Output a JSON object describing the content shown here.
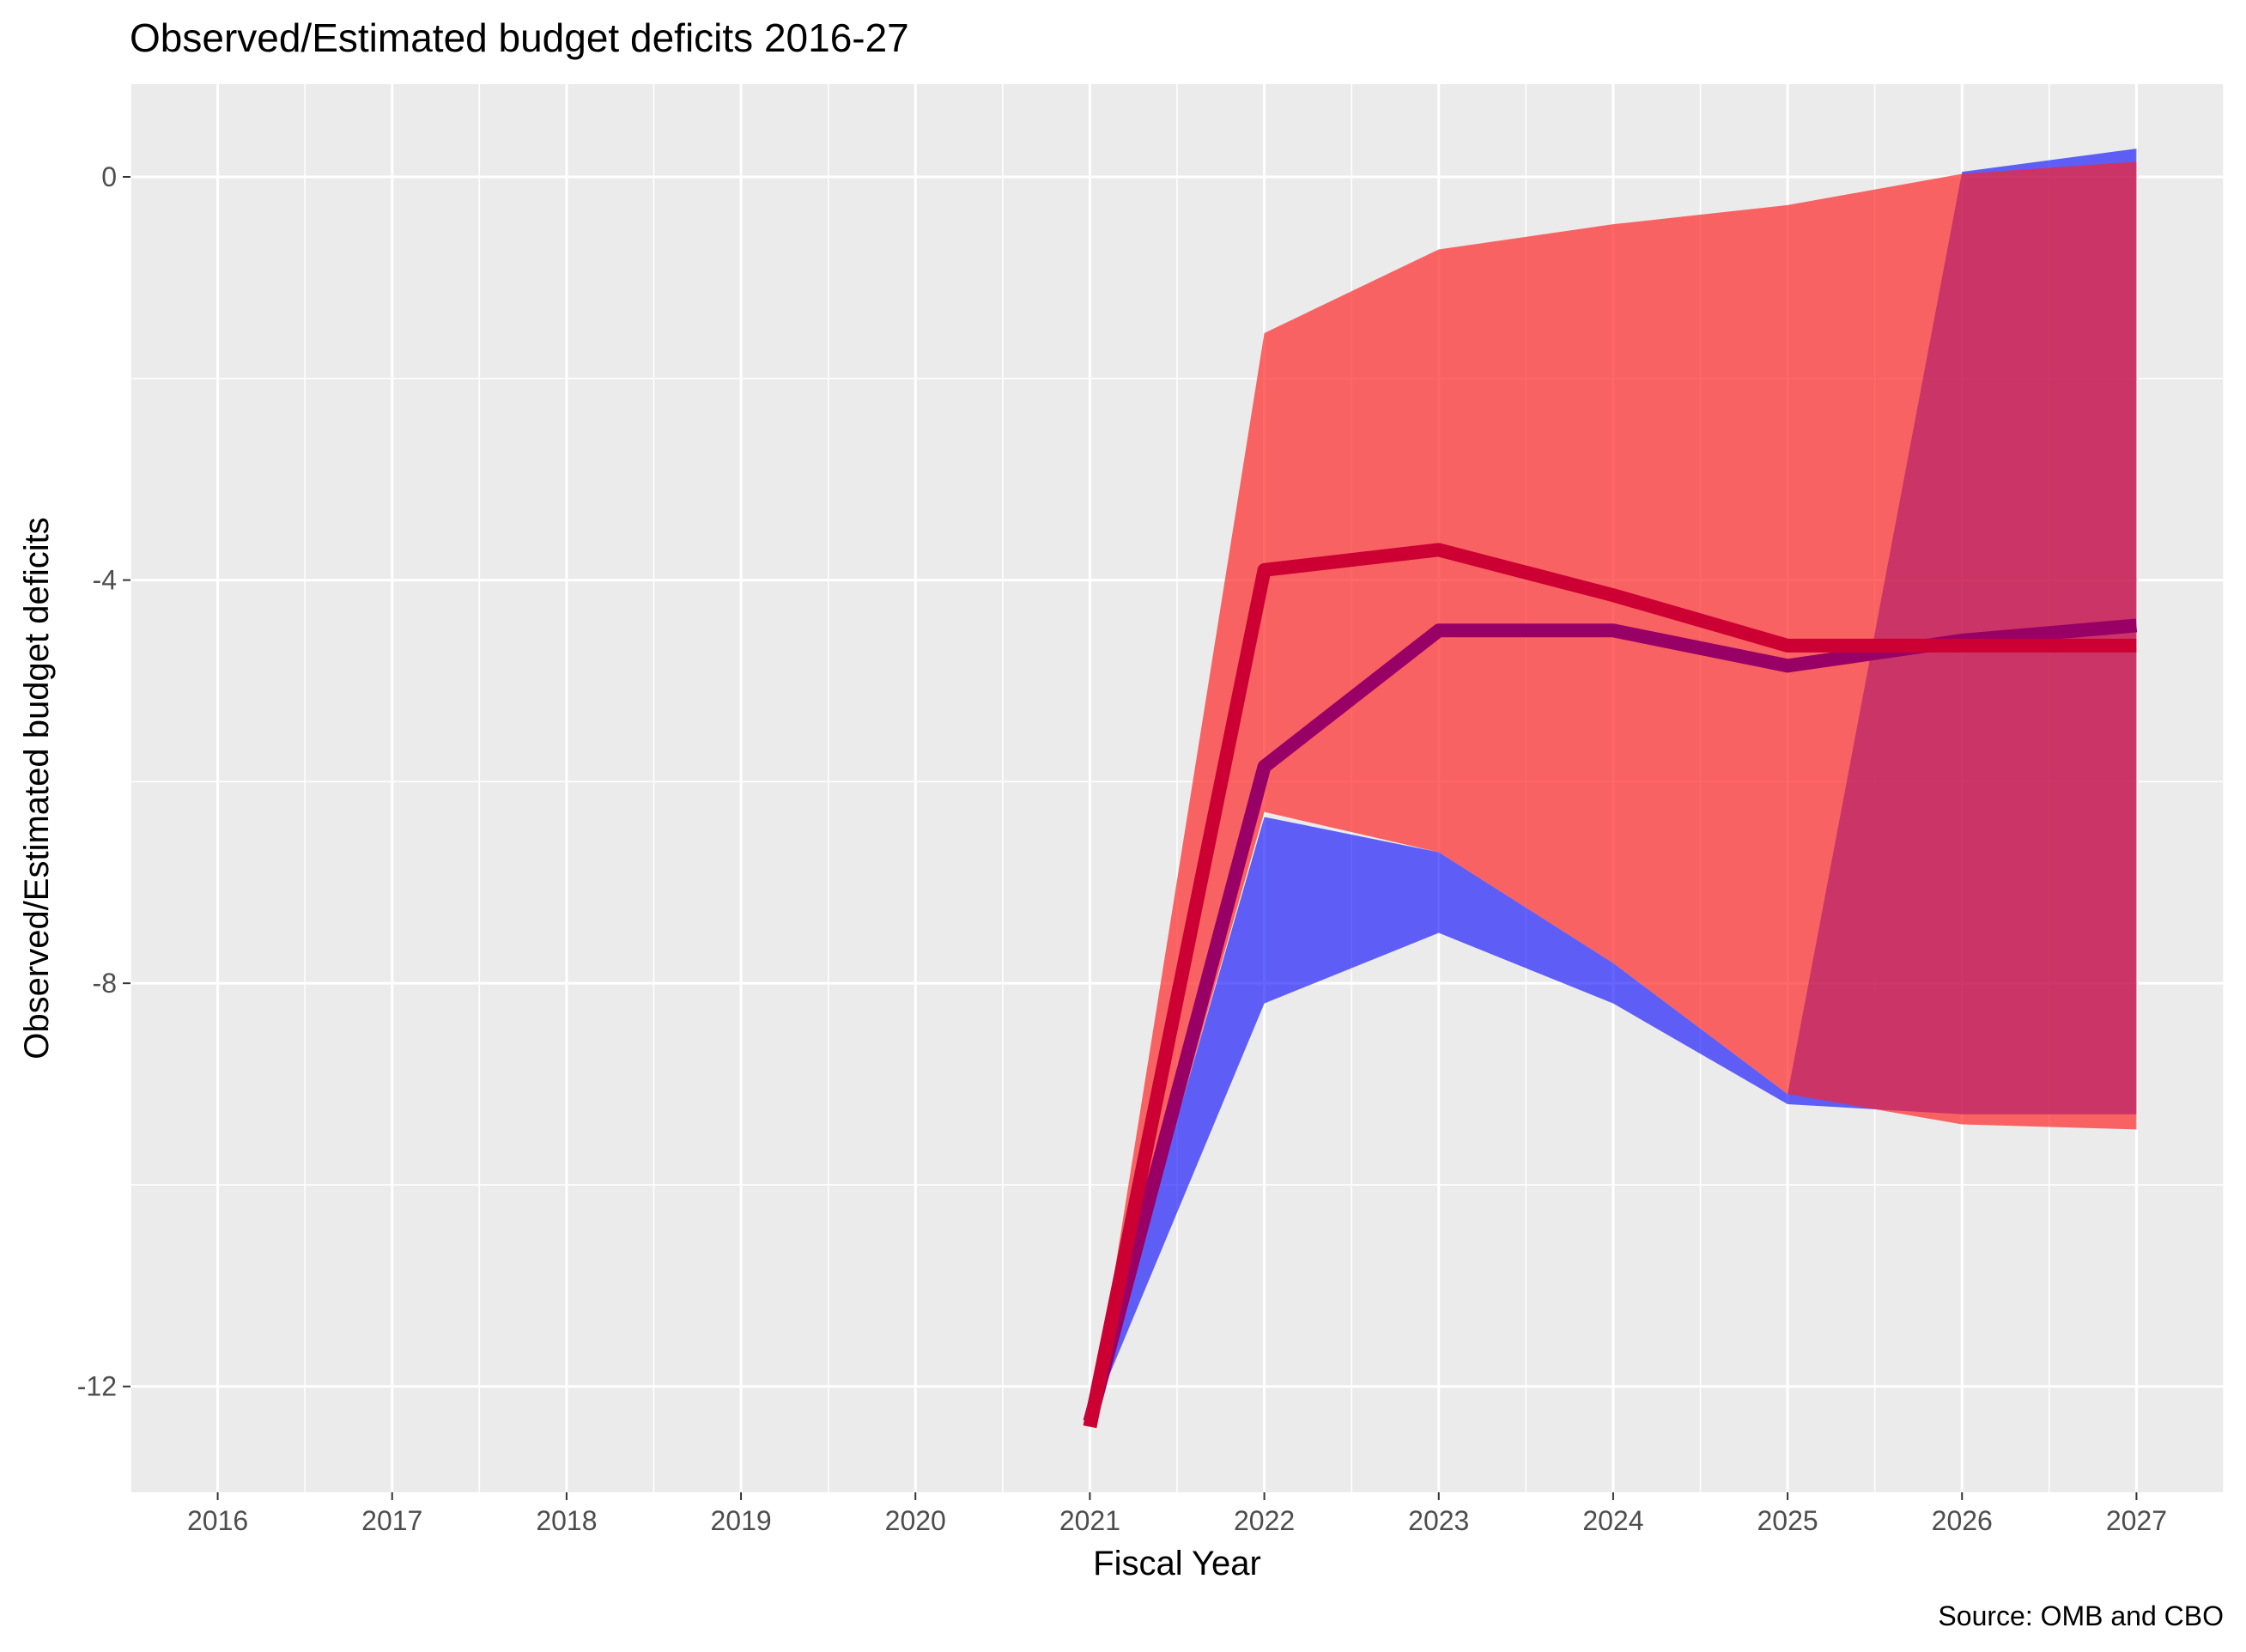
{
  "chart_data": {
    "type": "area",
    "title": "Observed/Estimated budget deficits 2016-27",
    "xlabel": "Fiscal Year",
    "ylabel": "Observed/Estimated budget deficits",
    "caption": "Source: OMB and CBO",
    "xlim": [
      2015.5,
      2027.5
    ],
    "ylim": [
      -13.05,
      0.92
    ],
    "x_ticks": [
      2016,
      2017,
      2018,
      2019,
      2020,
      2021,
      2022,
      2023,
      2024,
      2025,
      2026,
      2027
    ],
    "y_ticks": [
      0,
      -4,
      -8,
      -12
    ],
    "y_tick_labels": [
      "0",
      "-4",
      "-8",
      "-12"
    ],
    "grid": true,
    "legend": "none",
    "series": [
      {
        "color": "#0000ff",
        "opacity": 0.6,
        "x": [
          2021,
          2022,
          2023,
          2024,
          2025,
          2026,
          2027
        ],
        "lower": [
          -12.35,
          -8.2,
          -7.5,
          -8.2,
          -9.2,
          -9.3,
          -9.3
        ],
        "upper": [
          -12.35,
          -6.35,
          -6.7,
          -7.8,
          -9.1,
          0.05,
          0.28
        ],
        "line": [
          -12.35,
          -5.85,
          -4.5,
          -4.5,
          -4.85,
          -4.6,
          -4.45
        ],
        "line_color": "#990066"
      },
      {
        "color": "#ff2020",
        "opacity": 0.68,
        "x": [
          2021,
          2022,
          2023,
          2024,
          2025,
          2026,
          2027
        ],
        "lower": [
          -12.4,
          -6.3,
          -6.7,
          -7.8,
          -9.1,
          -9.4,
          -9.45
        ],
        "upper": [
          -12.4,
          -1.55,
          -0.72,
          -0.47,
          -0.28,
          0.03,
          0.15
        ],
        "line": [
          -12.4,
          -3.9,
          -3.7,
          -4.15,
          -4.65,
          -4.65,
          -4.65
        ],
        "line_color": "#cc0033"
      }
    ]
  }
}
